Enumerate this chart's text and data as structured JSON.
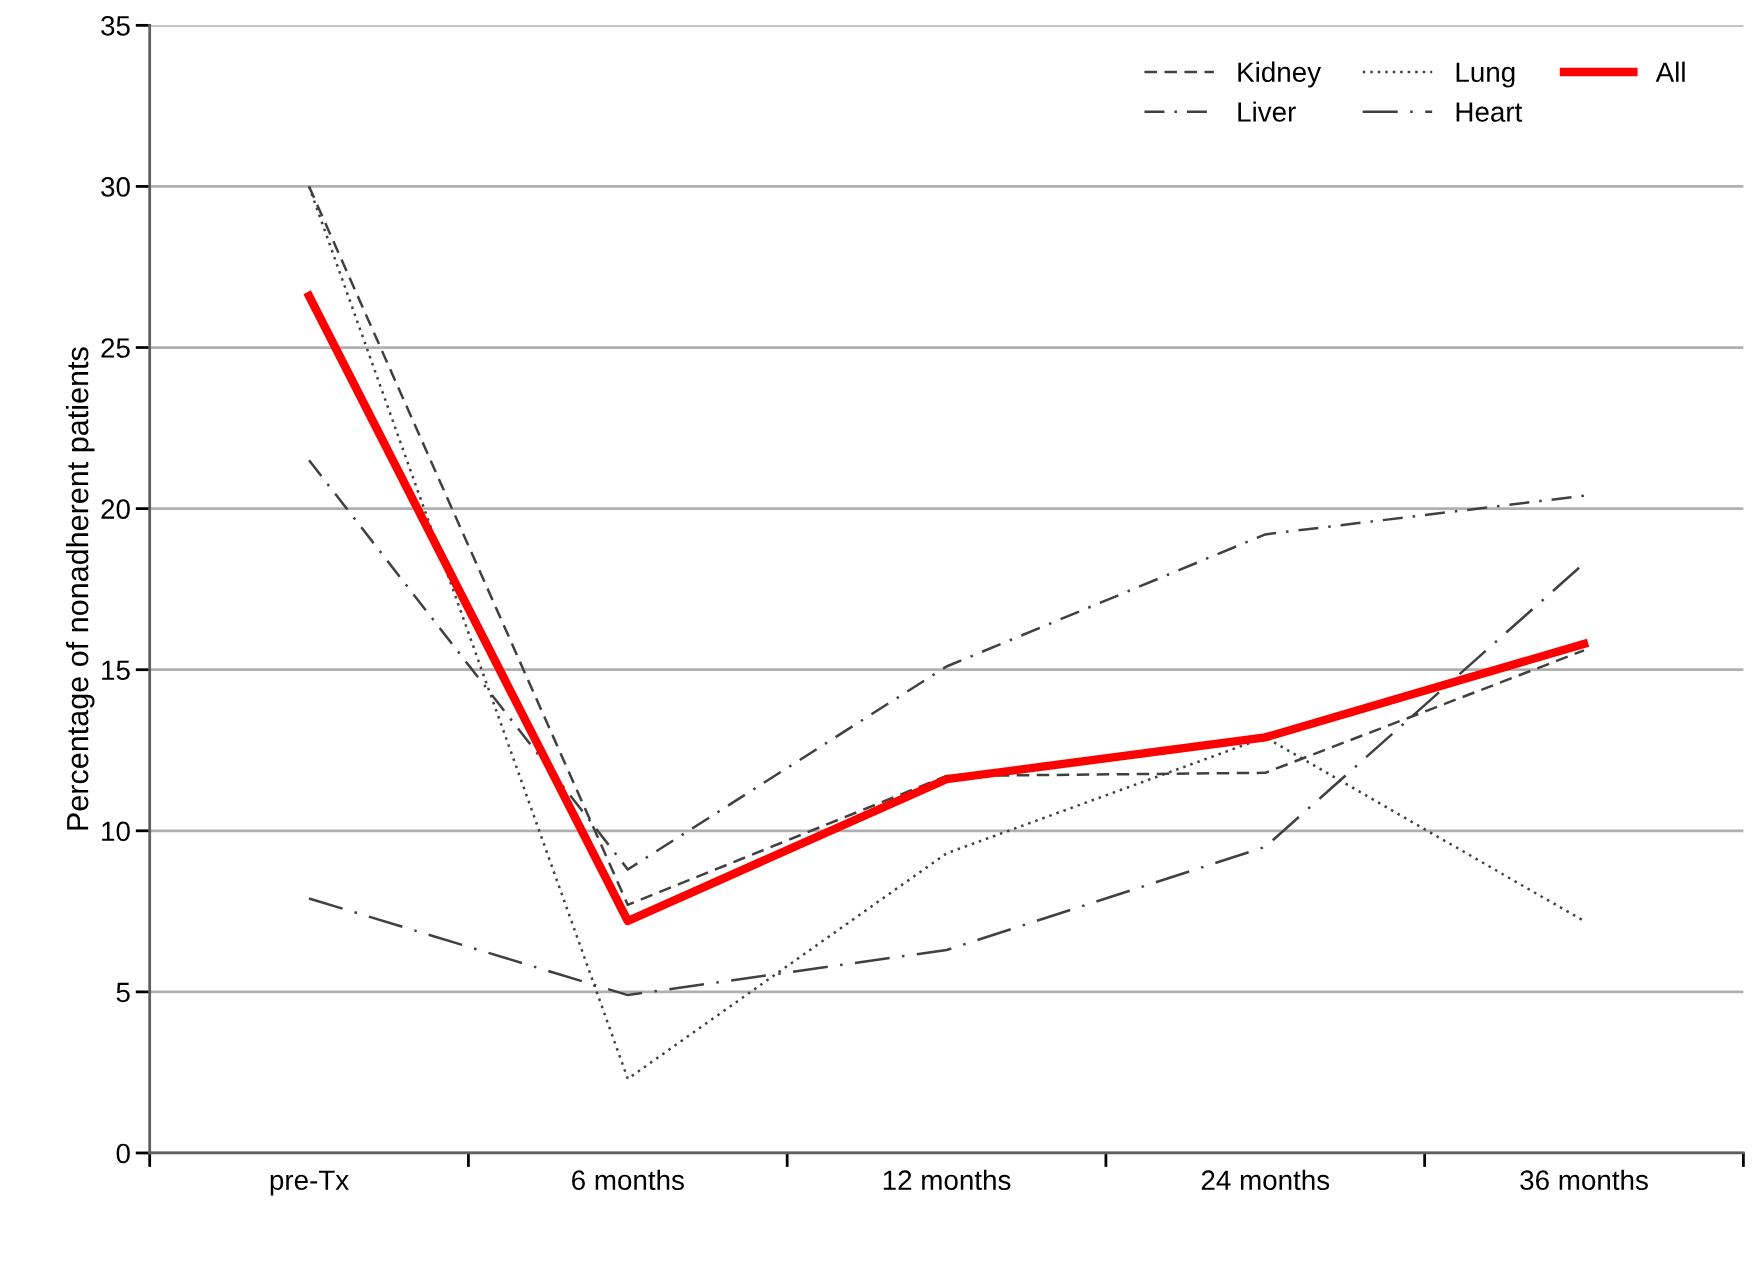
{
  "chart_data": {
    "type": "line",
    "ylabel": "Percentage of nonadherent patients",
    "categories": [
      "pre-Tx",
      "6 months",
      "12 months",
      "24 months",
      "36 months"
    ],
    "ylim": [
      0,
      35
    ],
    "yticks": [
      0,
      5,
      10,
      15,
      20,
      25,
      30,
      35
    ],
    "grid": "y",
    "legend": "top right",
    "marker": "none",
    "series": [
      {
        "name": "Kidney",
        "color": "#404040",
        "line_style": "dashed",
        "values": [
          30,
          7.7,
          11.7,
          11.8,
          15.6
        ]
      },
      {
        "name": "Liver",
        "color": "#404040",
        "line_style": "dashdot",
        "values": [
          21.5,
          8.8,
          15.1,
          19.2,
          20.4
        ]
      },
      {
        "name": "Lung",
        "color": "#404040",
        "line_style": "dotted",
        "values": [
          30,
          2.3,
          9.3,
          12.9,
          7.2
        ]
      },
      {
        "name": "Heart",
        "color": "#404040",
        "line_style": "longdashdot",
        "values": [
          7.9,
          4.9,
          6.3,
          9.5,
          18.3
        ]
      },
      {
        "name": "All",
        "color": "#ff0000",
        "line_style": "solid",
        "values": [
          26.6,
          7.2,
          11.6,
          12.9,
          15.8
        ]
      }
    ]
  }
}
